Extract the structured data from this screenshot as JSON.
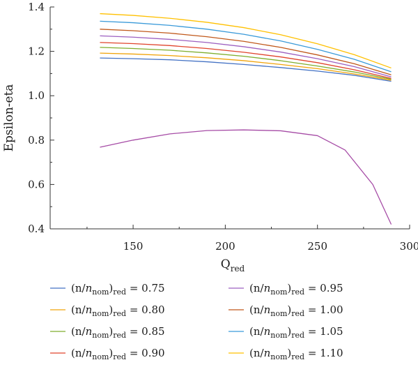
{
  "chart_data": {
    "type": "line",
    "xlabel": "Q",
    "xlabel_sub": "red",
    "ylabel": "Epsilon-eta",
    "xlim": [
      105,
      300
    ],
    "ylim": [
      0.4,
      1.4
    ],
    "x_ticks": [
      150,
      200,
      250,
      300
    ],
    "y_ticks": [
      0.4,
      0.6,
      0.8,
      1.0,
      1.2,
      1.4
    ],
    "y_tick_labels": [
      "0.4",
      "0.6",
      "0.8",
      "1.0",
      "1.2",
      "1.4"
    ],
    "grid": false,
    "legend_position": "bottom",
    "x": [
      132,
      150,
      170,
      190,
      210,
      230,
      250,
      270,
      290
    ],
    "series": [
      {
        "label_value": "0.75",
        "color": "#4472c4",
        "values": [
          1.17,
          1.167,
          1.162,
          1.153,
          1.141,
          1.127,
          1.111,
          1.092,
          1.065
        ]
      },
      {
        "label_value": "0.80",
        "color": "#f0a30a",
        "values": [
          1.192,
          1.188,
          1.181,
          1.171,
          1.158,
          1.141,
          1.122,
          1.098,
          1.07
        ]
      },
      {
        "label_value": "0.85",
        "color": "#7fae2e",
        "values": [
          1.218,
          1.213,
          1.205,
          1.193,
          1.178,
          1.158,
          1.134,
          1.107,
          1.074
        ]
      },
      {
        "label_value": "0.90",
        "color": "#e0442c",
        "values": [
          1.24,
          1.235,
          1.226,
          1.213,
          1.196,
          1.175,
          1.149,
          1.117,
          1.078
        ]
      },
      {
        "label_value": "0.95",
        "color": "#9c5fc0",
        "values": [
          1.27,
          1.264,
          1.254,
          1.24,
          1.221,
          1.197,
          1.167,
          1.131,
          1.085
        ]
      },
      {
        "label_value": "1.00",
        "color": "#c0581a",
        "values": [
          1.3,
          1.293,
          1.282,
          1.266,
          1.245,
          1.218,
          1.184,
          1.144,
          1.094
        ]
      },
      {
        "label_value": "1.05",
        "color": "#3a9ad9",
        "values": [
          1.336,
          1.329,
          1.317,
          1.3,
          1.277,
          1.247,
          1.209,
          1.164,
          1.108
        ]
      },
      {
        "label_value": "1.10",
        "color": "#ffc000",
        "values": [
          1.37,
          1.362,
          1.349,
          1.331,
          1.307,
          1.275,
          1.234,
          1.185,
          1.125
        ]
      },
      {
        "label_value": "",
        "color": "#a64ca6",
        "in_legend": false,
        "x": [
          132,
          150,
          170,
          190,
          210,
          230,
          250,
          265,
          280,
          290
        ],
        "values": [
          0.768,
          0.8,
          0.828,
          0.843,
          0.846,
          0.842,
          0.82,
          0.755,
          0.6,
          0.42
        ]
      }
    ],
    "legend": {
      "prefix": "(n/",
      "n_nom_n": "n",
      "n_nom_sub": "nom",
      "close": ")",
      "red_sub": "red",
      "equals": " = "
    }
  }
}
